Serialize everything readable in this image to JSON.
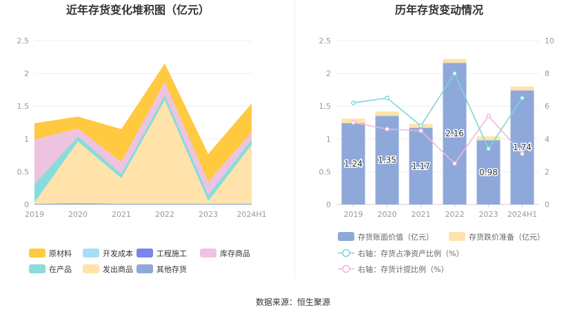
{
  "source": "数据来源：恒生聚源",
  "chart_data": [
    {
      "type": "area",
      "title": "近年存货变化堆积图（亿元）",
      "x": [
        "2019",
        "2020",
        "2021",
        "2022",
        "2023",
        "2024H1"
      ],
      "ylim": [
        0,
        2.5
      ],
      "yticks": [
        "0",
        "0.5",
        "1",
        "1.5",
        "2",
        "2.5"
      ],
      "grid": true,
      "legend_position": "bottom",
      "series": [
        {
          "name": "原材料",
          "color": "#FFC940",
          "values": [
            0.25,
            0.18,
            0.5,
            0.28,
            0.42,
            0.44
          ]
        },
        {
          "name": "开发成本",
          "color": "#A8DDF8",
          "values": [
            0,
            0,
            0,
            0,
            0,
            0
          ]
        },
        {
          "name": "工程施工",
          "color": "#7B85F0",
          "values": [
            0,
            0,
            0,
            0,
            0,
            0
          ]
        },
        {
          "name": "库存商品",
          "color": "#EEC3E0",
          "values": [
            0.68,
            0.12,
            0.18,
            0.2,
            0.2,
            0.11
          ]
        },
        {
          "name": "在产品",
          "color": "#8ADBDB",
          "values": [
            0.28,
            0.08,
            0.07,
            0.08,
            0.1,
            0.08
          ]
        },
        {
          "name": "发出商品",
          "color": "#FFE3AB",
          "values": [
            0.02,
            0.94,
            0.39,
            1.58,
            0.04,
            0.9
          ]
        },
        {
          "name": "其他存货",
          "color": "#8EA8DA",
          "values": [
            0.01,
            0.02,
            0.01,
            0.01,
            0.01,
            0.01
          ]
        }
      ],
      "legend": [
        {
          "name": "原材料",
          "color": "#FFC940"
        },
        {
          "name": "开发成本",
          "color": "#A8DDF8"
        },
        {
          "name": "工程施工",
          "color": "#7B85F0"
        },
        {
          "name": "库存商品",
          "color": "#EEC3E0"
        },
        {
          "name": "在产品",
          "color": "#8ADBDB"
        },
        {
          "name": "发出商品",
          "color": "#FFE3AB"
        },
        {
          "name": "其他存货",
          "color": "#8EA8DA"
        }
      ]
    },
    {
      "type": "bar",
      "title": "历年存货变动情况",
      "categories": [
        "2019",
        "2020",
        "2021",
        "2022",
        "2023",
        "2024H1"
      ],
      "ylim": [
        0,
        2.5
      ],
      "yticks": [
        "0",
        "0.5",
        "1",
        "1.5",
        "2",
        "2.5"
      ],
      "y2lim": [
        0,
        10
      ],
      "y2ticks": [
        "0",
        "2",
        "4",
        "6",
        "8",
        "10"
      ],
      "grid": true,
      "legend_position": "bottom",
      "series": [
        {
          "name": "存货账面价值（亿元）",
          "color": "#8EA8DA",
          "axis": "left",
          "kind": "bar-stack",
          "values": [
            1.24,
            1.35,
            1.17,
            2.16,
            0.98,
            1.74
          ],
          "labels": [
            "1.24",
            "1.35",
            "1.17",
            "2.16",
            "0.98",
            "1.74"
          ]
        },
        {
          "name": "存货跌价准备（亿元）",
          "color": "#FFE3AB",
          "axis": "left",
          "kind": "bar-stack",
          "values": [
            0.07,
            0.07,
            0.06,
            0.06,
            0.06,
            0.06
          ]
        },
        {
          "name": "右轴：存货占净资产比例（%）",
          "color": "#7FD6D6",
          "axis": "right",
          "kind": "line",
          "values": [
            6.2,
            6.5,
            4.8,
            8.0,
            3.4,
            6.5
          ]
        },
        {
          "name": "右轴：存货计提比例（%）",
          "color": "#EBB8DD",
          "axis": "right",
          "kind": "line",
          "values": [
            5.0,
            4.6,
            4.5,
            2.5,
            5.4,
            3.1
          ]
        }
      ]
    }
  ]
}
